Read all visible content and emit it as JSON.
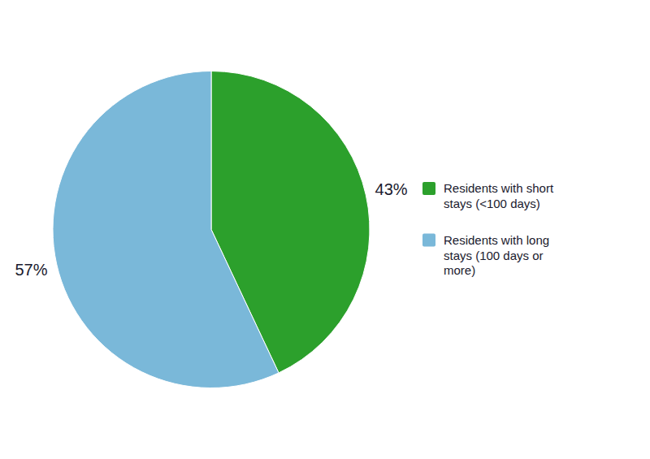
{
  "chart_data": {
    "type": "pie",
    "categories": [
      "Residents with short\nstays (<100 days)",
      "Residents with long\nstays (100 days or\nmore)"
    ],
    "values": [
      43,
      57
    ],
    "value_labels": [
      "43%",
      "57%"
    ],
    "colors": [
      "#2ca02c",
      "#7ab8d9"
    ],
    "data_labels": true,
    "legend": "right"
  }
}
